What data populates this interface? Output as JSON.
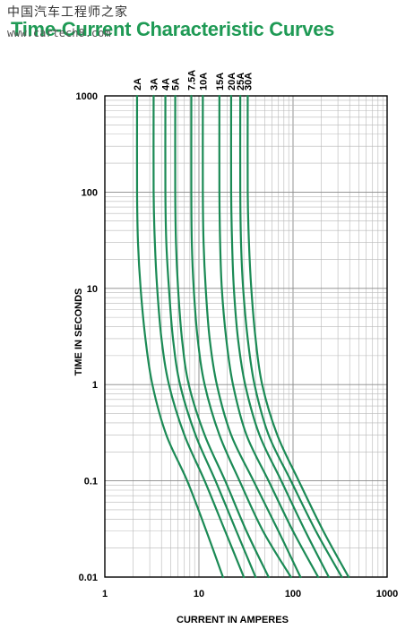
{
  "watermark": {
    "chinese": "中国汽车工程师之家",
    "url": "www.cartech8.com"
  },
  "colors": {
    "curve": "#1b8a55",
    "title": "#1f9a55",
    "grid": "#b8b8b8",
    "frame": "#000000"
  },
  "chart_data": {
    "type": "line",
    "title": "Time-Current Characteristic Curves",
    "xlabel": "CURRENT IN AMPERES",
    "ylabel": "TIME IN SECONDS",
    "xscale": "log",
    "yscale": "log",
    "xlim": [
      1,
      1000
    ],
    "ylim": [
      0.01,
      1000
    ],
    "grid": true,
    "x_ticks": [
      "1",
      "10",
      "100",
      "1000"
    ],
    "y_ticks": [
      "1000",
      "100",
      "10",
      "1",
      "0.1",
      "0.01"
    ],
    "series": [
      {
        "name": "2A",
        "points": [
          [
            2.2,
            1000
          ],
          [
            2.2,
            100
          ],
          [
            2.25,
            30
          ],
          [
            2.4,
            10
          ],
          [
            2.7,
            3
          ],
          [
            3.2,
            1
          ],
          [
            4.5,
            0.3
          ],
          [
            7.5,
            0.1
          ],
          [
            12,
            0.03
          ],
          [
            18,
            0.01
          ]
        ]
      },
      {
        "name": "3A",
        "points": [
          [
            3.3,
            1000
          ],
          [
            3.3,
            100
          ],
          [
            3.4,
            30
          ],
          [
            3.6,
            10
          ],
          [
            4.0,
            3
          ],
          [
            4.8,
            1
          ],
          [
            7,
            0.3
          ],
          [
            11.5,
            0.1
          ],
          [
            19,
            0.03
          ],
          [
            30,
            0.01
          ]
        ]
      },
      {
        "name": "4A",
        "points": [
          [
            4.4,
            1000
          ],
          [
            4.4,
            100
          ],
          [
            4.5,
            30
          ],
          [
            4.8,
            10
          ],
          [
            5.3,
            3
          ],
          [
            6.3,
            1
          ],
          [
            9.2,
            0.3
          ],
          [
            15,
            0.1
          ],
          [
            25,
            0.03
          ],
          [
            40,
            0.01
          ]
        ]
      },
      {
        "name": "5A",
        "points": [
          [
            5.6,
            1000
          ],
          [
            5.6,
            100
          ],
          [
            5.7,
            30
          ],
          [
            6.0,
            10
          ],
          [
            6.6,
            3
          ],
          [
            7.8,
            1
          ],
          [
            11.5,
            0.3
          ],
          [
            19,
            0.1
          ],
          [
            32,
            0.03
          ],
          [
            55,
            0.01
          ]
        ]
      },
      {
        "name": "7.5A",
        "points": [
          [
            8.3,
            1000
          ],
          [
            8.3,
            100
          ],
          [
            8.4,
            30
          ],
          [
            8.8,
            10
          ],
          [
            9.7,
            3
          ],
          [
            11.5,
            1
          ],
          [
            16.5,
            0.3
          ],
          [
            27,
            0.1
          ],
          [
            48,
            0.03
          ],
          [
            95,
            0.01
          ]
        ]
      },
      {
        "name": "10A",
        "points": [
          [
            11,
            1000
          ],
          [
            11,
            100
          ],
          [
            11.2,
            30
          ],
          [
            11.8,
            10
          ],
          [
            13,
            3
          ],
          [
            15.5,
            1
          ],
          [
            22,
            0.3
          ],
          [
            38,
            0.1
          ],
          [
            70,
            0.03
          ],
          [
            120,
            0.01
          ]
        ]
      },
      {
        "name": "15A",
        "points": [
          [
            16.5,
            1000
          ],
          [
            16.5,
            100
          ],
          [
            16.8,
            30
          ],
          [
            17.5,
            10
          ],
          [
            19.5,
            3
          ],
          [
            23,
            1
          ],
          [
            32,
            0.3
          ],
          [
            55,
            0.1
          ],
          [
            100,
            0.03
          ],
          [
            185,
            0.01
          ]
        ]
      },
      {
        "name": "20A",
        "points": [
          [
            22,
            1000
          ],
          [
            22,
            100
          ],
          [
            22.5,
            30
          ],
          [
            23.5,
            10
          ],
          [
            26,
            3
          ],
          [
            31,
            1
          ],
          [
            44,
            0.3
          ],
          [
            75,
            0.1
          ],
          [
            135,
            0.03
          ],
          [
            240,
            0.01
          ]
        ]
      },
      {
        "name": "25A",
        "points": [
          [
            27.5,
            1000
          ],
          [
            27.5,
            100
          ],
          [
            28,
            30
          ],
          [
            29.5,
            10
          ],
          [
            33,
            3
          ],
          [
            39,
            1
          ],
          [
            55,
            0.3
          ],
          [
            95,
            0.1
          ],
          [
            175,
            0.03
          ],
          [
            330,
            0.01
          ]
        ]
      },
      {
        "name": "30A",
        "points": [
          [
            33,
            1000
          ],
          [
            33,
            100
          ],
          [
            34,
            30
          ],
          [
            36,
            10
          ],
          [
            40,
            3
          ],
          [
            47,
            1
          ],
          [
            68,
            0.3
          ],
          [
            115,
            0.1
          ],
          [
            210,
            0.03
          ],
          [
            390,
            0.01
          ]
        ]
      }
    ]
  }
}
